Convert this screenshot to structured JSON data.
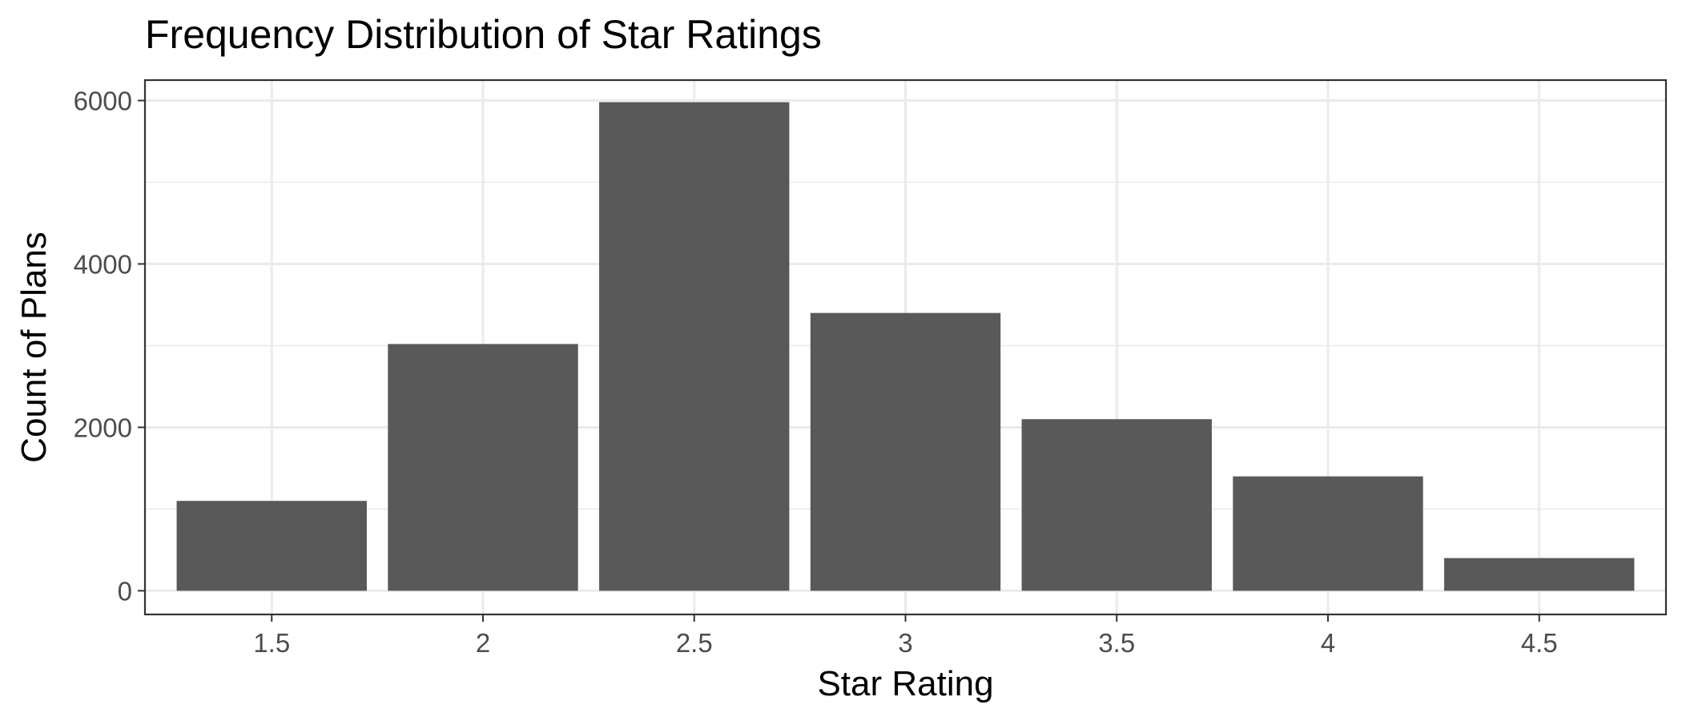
{
  "chart_data": {
    "type": "bar",
    "title": "Frequency Distribution of Star Ratings",
    "xlabel": "Star Rating",
    "ylabel": "Count of Plans",
    "categories": [
      "1.5",
      "2",
      "2.5",
      "3",
      "3.5",
      "4",
      "4.5"
    ],
    "values": [
      1100,
      3020,
      5980,
      3400,
      2100,
      1400,
      400
    ],
    "ylim": [
      -290,
      6250
    ],
    "yticks": [
      0,
      2000,
      4000,
      6000
    ],
    "grid": true,
    "legend": "none",
    "colors": {
      "bar": "#595959",
      "grid": "#ebebeb",
      "panel_border": "#333333",
      "tick_label": "#4d4d4d",
      "background": "#ffffff"
    }
  }
}
